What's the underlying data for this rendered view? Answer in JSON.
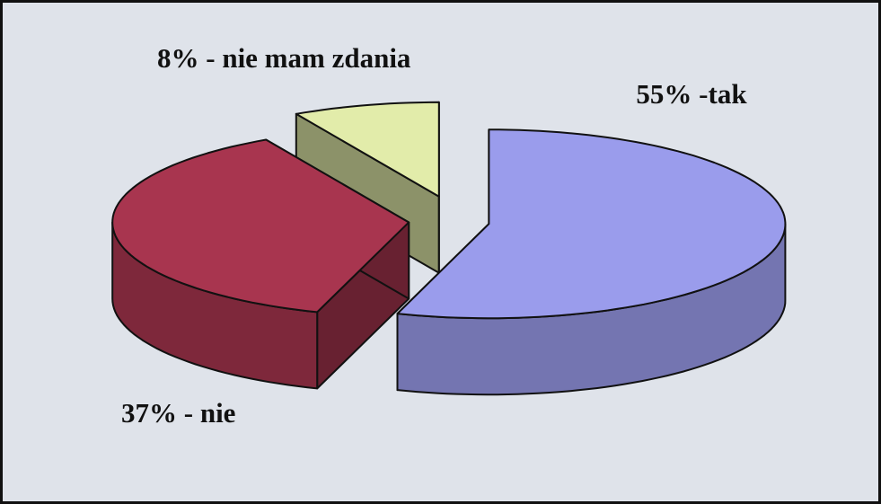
{
  "chart_data": {
    "type": "pie",
    "values": [
      55,
      37,
      8
    ],
    "value_labels": [
      "55% -tak",
      "37% - nie",
      "8% - nie mam zdania"
    ],
    "colors": [
      "#9a9cec",
      "#a8354f",
      "#e2ecaa"
    ]
  }
}
